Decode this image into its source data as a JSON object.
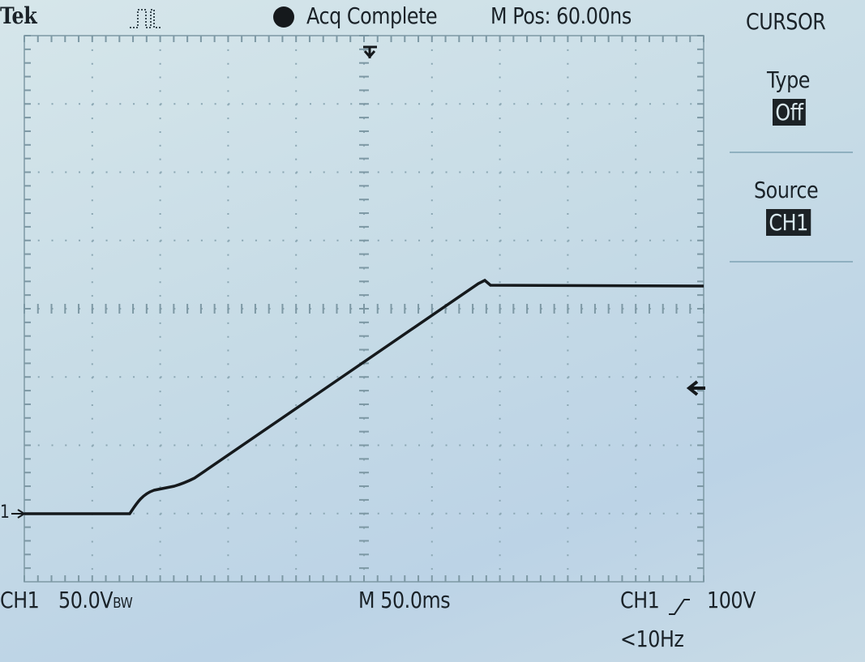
{
  "header": {
    "brand": "Tek",
    "status": "Acq Complete",
    "position": "M Pos: 60.00ns"
  },
  "menu": {
    "title": "CURSOR",
    "items": [
      {
        "label": "Type",
        "value": "Off"
      },
      {
        "label": "Source",
        "value": "CH1"
      }
    ]
  },
  "footer": {
    "channel": "CH1",
    "scale": "50.0V",
    "bandwidth": "BW",
    "timebase": "M 50.0ms",
    "trigger_source": "CH1",
    "trigger_level": "100V",
    "frequency": "<10Hz"
  },
  "marker": "1"
}
